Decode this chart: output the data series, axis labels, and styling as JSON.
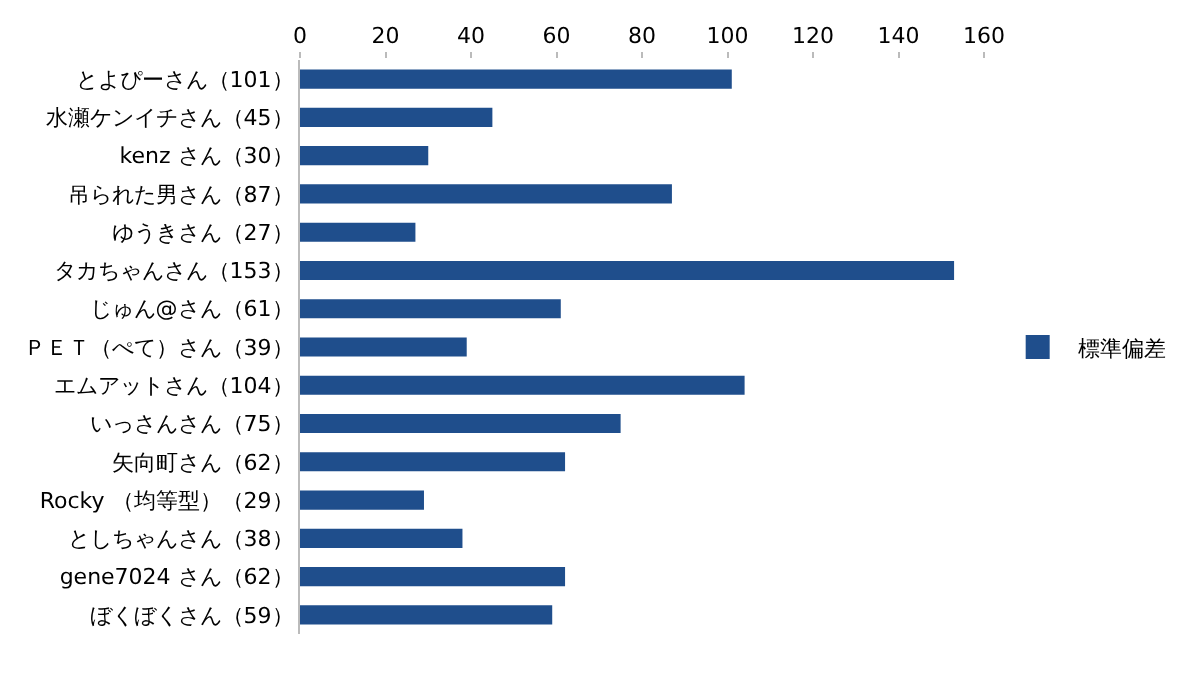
{
  "chart_data": {
    "type": "bar",
    "orientation": "horizontal",
    "categories": [
      "とよぴーさん（101）",
      "水瀬ケンイチさん（45）",
      "kenz さん（30）",
      "吊られた男さん（87）",
      "ゆうきさん（27）",
      "タカちゃんさん（153）",
      "じゅん@さん（61）",
      "ＰＥＴ（ぺて）さん（39）",
      "エムアットさん（104）",
      "いっさんさん（75）",
      "矢向町さん（62）",
      "Rocky （均等型）（29）",
      "としちゃんさん（38）",
      "gene7024 さん（62）",
      "ぼくぼくさん（59）"
    ],
    "series": [
      {
        "name": "標準偏差",
        "color": "#1f4e8c",
        "values": [
          101,
          45,
          30,
          87,
          27,
          153,
          61,
          39,
          104,
          75,
          62,
          29,
          38,
          62,
          59
        ]
      }
    ],
    "xlim": [
      0,
      160
    ],
    "xticks": [
      0,
      20,
      40,
      60,
      80,
      100,
      120,
      140,
      160
    ],
    "legend": "right"
  }
}
